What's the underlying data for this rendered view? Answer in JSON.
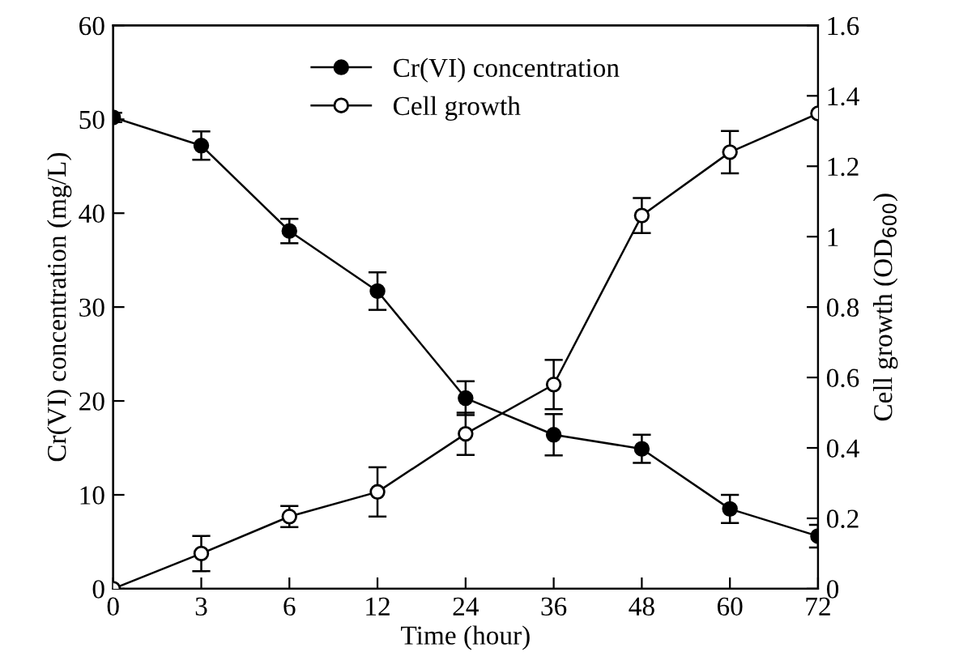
{
  "chart_data": {
    "type": "line",
    "xlabel": "Time (hour)",
    "ylabel": "Cr(VI) concentration (mg/L)",
    "y2label": "Cell growth (OD$_{600}$)",
    "categories": [
      "0",
      "3",
      "6",
      "12",
      "24",
      "36",
      "48",
      "60",
      "72"
    ],
    "series": [
      {
        "name": "Cr(VI) concentration",
        "color": "#000000",
        "values": [
          50.2,
          47.2,
          38.1,
          31.7,
          20.3,
          16.4,
          14.9,
          8.5,
          5.6
        ],
        "errors": [
          0.5,
          1.5,
          1.3,
          2,
          1.8,
          2.2,
          1.5,
          1.5,
          1.2
        ]
      },
      {
        "name": "Cell growth",
        "color": "#ffffff",
        "axis": "y2",
        "values": [
          0,
          0.1,
          0.205,
          0.275,
          0.44,
          0.58,
          1.06,
          1.24,
          1.35
        ],
        "errors": [
          null,
          0.05,
          0.03,
          0.07,
          0.06,
          0.07,
          0.05,
          0.06,
          null
        ]
      }
    ],
    "ylim": [
      0,
      60
    ],
    "yticks": [
      0,
      10,
      20,
      30,
      40,
      50,
      60
    ],
    "y2lim": [
      0,
      1.6
    ],
    "y2ticks": [
      0,
      0.2,
      0.4,
      0.6,
      0.8,
      1,
      1.2,
      1.4,
      1.6
    ],
    "marker": "circle",
    "line_style": "solid",
    "legend": "top",
    "grid": false
  }
}
